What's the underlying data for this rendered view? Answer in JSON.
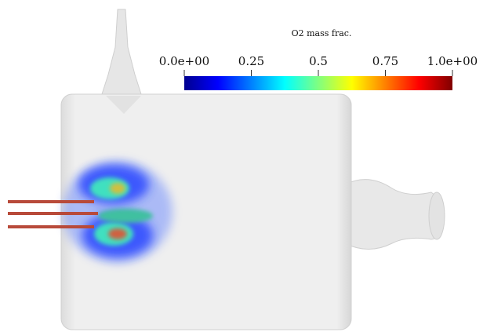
{
  "colorbar": {
    "title": "O2 mass frac.",
    "range": [
      0,
      1
    ],
    "ticks": [
      {
        "value": 0,
        "label": "0.0e+00"
      },
      0.25,
      0.5,
      0.75,
      {
        "value": 1,
        "label": "1.0e+00"
      }
    ],
    "colormap": [
      "#00008f",
      "#0000ff",
      "#0080ff",
      "#00ffff",
      "#80ff80",
      "#ffff00",
      "#ff8000",
      "#ff0000",
      "#800000"
    ]
  }
}
